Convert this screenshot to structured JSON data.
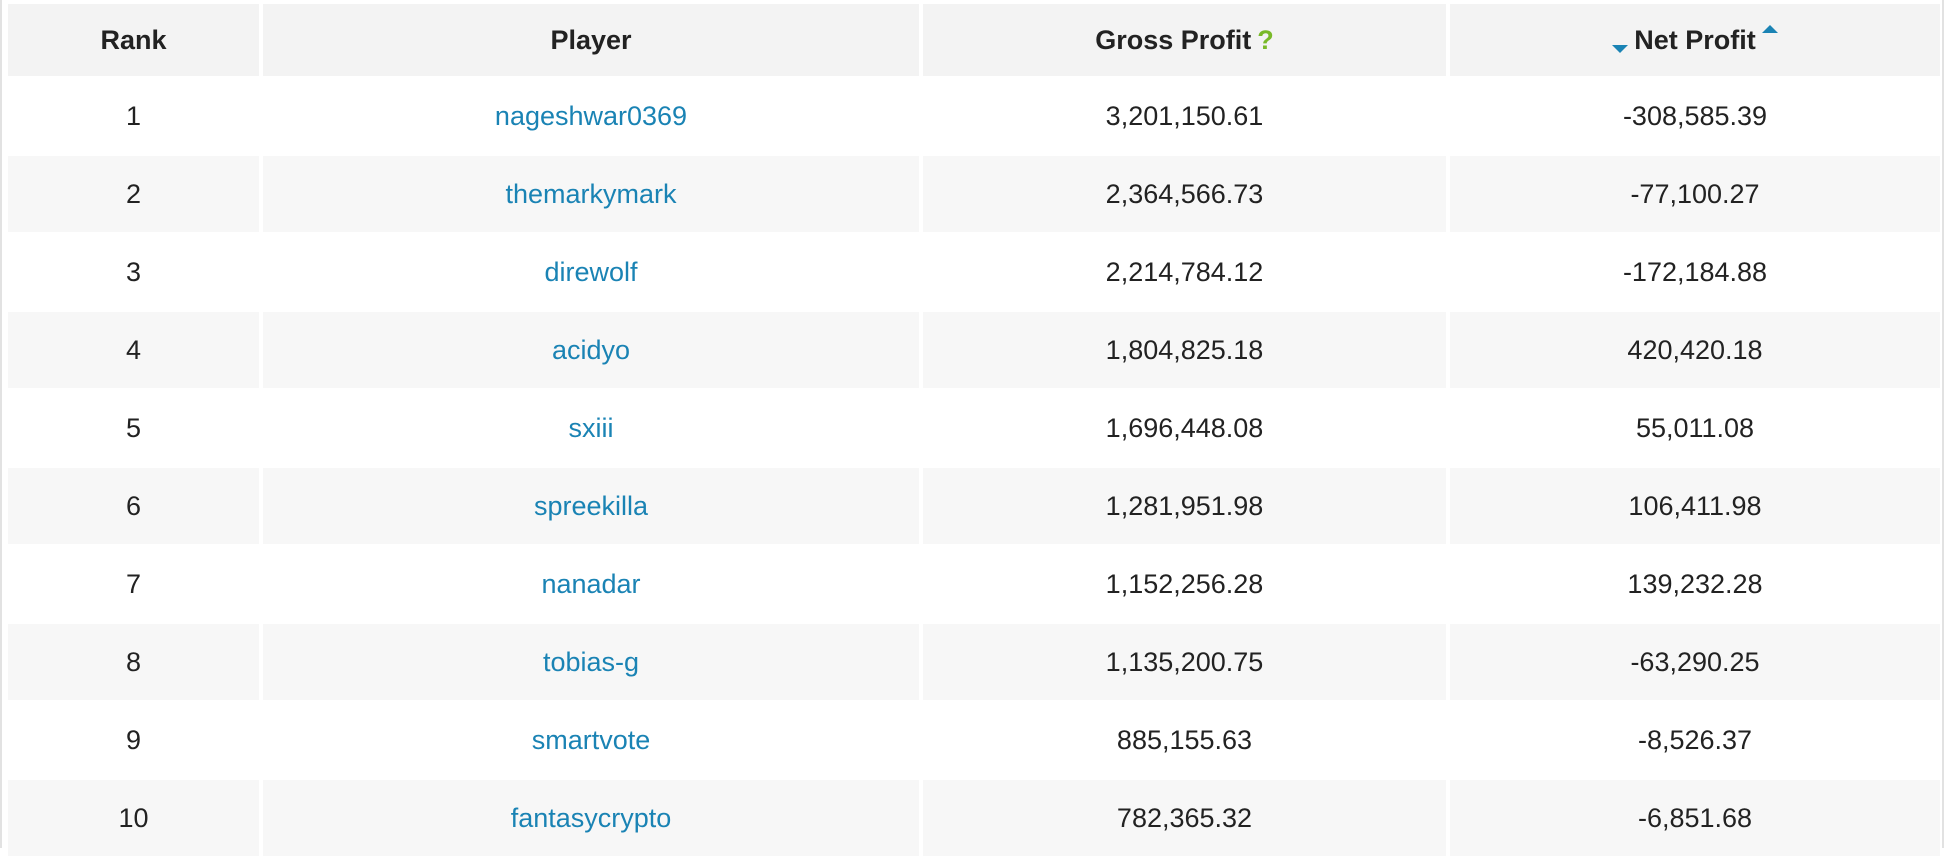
{
  "table": {
    "headers": {
      "rank": "Rank",
      "player": "Player",
      "gross_profit": "Gross Profit",
      "gross_help": "?",
      "net_profit": "Net Profit"
    },
    "rows": [
      {
        "rank": "1",
        "player": "nageshwar0369",
        "gross": "3,201,150.61",
        "net": "-308,585.39"
      },
      {
        "rank": "2",
        "player": "themarkymark",
        "gross": "2,364,566.73",
        "net": "-77,100.27"
      },
      {
        "rank": "3",
        "player": "direwolf",
        "gross": "2,214,784.12",
        "net": "-172,184.88"
      },
      {
        "rank": "4",
        "player": "acidyo",
        "gross": "1,804,825.18",
        "net": "420,420.18"
      },
      {
        "rank": "5",
        "player": "sxiii",
        "gross": "1,696,448.08",
        "net": "55,011.08"
      },
      {
        "rank": "6",
        "player": "spreekilla",
        "gross": "1,281,951.98",
        "net": "106,411.98"
      },
      {
        "rank": "7",
        "player": "nanadar",
        "gross": "1,152,256.28",
        "net": "139,232.28"
      },
      {
        "rank": "8",
        "player": "tobias-g",
        "gross": "1,135,200.75",
        "net": "-63,290.25"
      },
      {
        "rank": "9",
        "player": "smartvote",
        "gross": "885,155.63",
        "net": "-8,526.37"
      },
      {
        "rank": "10",
        "player": "fantasycrypto",
        "gross": "782,365.32",
        "net": "-6,851.68"
      }
    ]
  },
  "icons": {
    "help": "question-mark-icon",
    "sort_desc": "caret-down-icon",
    "sort_asc": "caret-up-icon"
  },
  "colors": {
    "link": "#1a83b4",
    "help": "#79b928",
    "header_bg": "#f3f3f3",
    "stripe_bg": "#f7f7f7"
  }
}
